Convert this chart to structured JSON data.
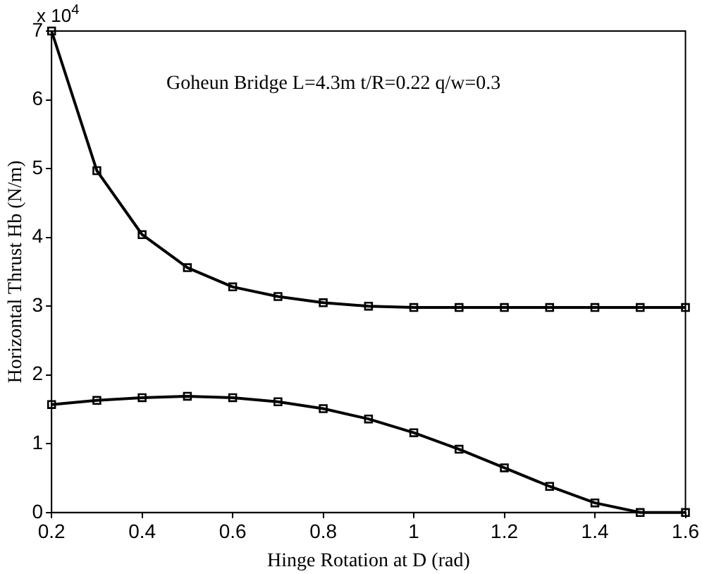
{
  "chart_data": {
    "type": "line",
    "xlabel": "Hinge Rotation at D (rad)",
    "ylabel": "Horizontal Thrust Hb (N/m)",
    "annotations": [
      "x 10$^{4}$",
      "Goheun Bridge L=4.3m t/R=0.22 q/w=0.3"
    ],
    "x": [
      0.2,
      0.3,
      0.4,
      0.5,
      0.6,
      0.7,
      0.8,
      0.9,
      1.0,
      1.1,
      1.2,
      1.3,
      1.4,
      1.5,
      1.6
    ],
    "series": [
      {
        "color": "#000000",
        "values": [
          7.0,
          4.97,
          4.04,
          3.56,
          3.28,
          3.14,
          3.05,
          3.0,
          2.98,
          2.98,
          2.98,
          2.98,
          2.98,
          2.98,
          2.98
        ]
      },
      {
        "color": "#000000",
        "values": [
          1.57,
          1.63,
          1.67,
          1.69,
          1.67,
          1.61,
          1.51,
          1.36,
          1.16,
          0.92,
          0.65,
          0.38,
          0.14,
          0,
          0
        ]
      }
    ],
    "xlim": [
      0.2,
      1.6
    ],
    "xticks": [
      0.2,
      0.4,
      0.6,
      0.8,
      1,
      1.2,
      1.4,
      1.6
    ],
    "ylim": [
      0,
      7
    ],
    "yticks": [
      0,
      1,
      2,
      3,
      4,
      5,
      6,
      7
    ],
    "grid": false,
    "legend": false,
    "marker": "square",
    "line_style": "solid"
  }
}
